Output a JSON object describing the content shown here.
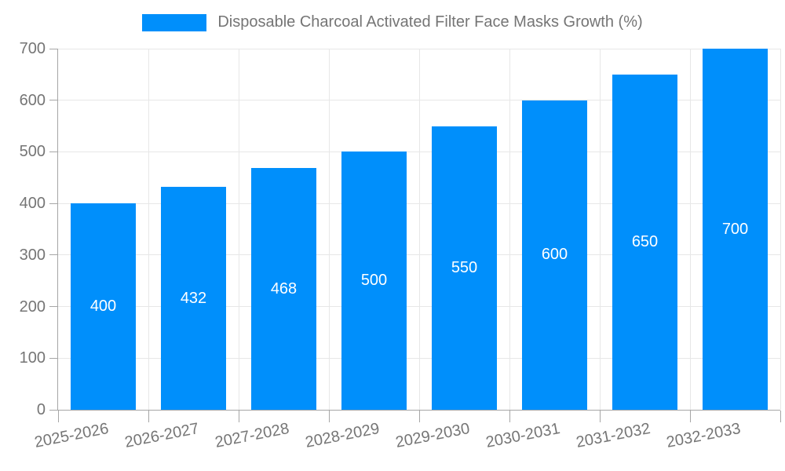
{
  "chart_data": {
    "type": "bar",
    "title": "Disposable Charcoal Activated Filter Face Masks Growth (%)",
    "categories": [
      "2025-2026",
      "2026-2027",
      "2027-2028",
      "2028-2029",
      "2029-2030",
      "2030-2031",
      "2031-2032",
      "2032-2033"
    ],
    "values": [
      400,
      432,
      468,
      500,
      550,
      600,
      650,
      700
    ],
    "yticks": [
      0,
      100,
      200,
      300,
      400,
      500,
      600,
      700
    ],
    "ylim": [
      0,
      700
    ],
    "xlabel": "",
    "ylabel": "",
    "grid": true,
    "legend_position": "top",
    "bar_color": "#008FFB",
    "label_color": "#ffffff",
    "grid_color": "#e7e7e7",
    "axis_color": "#a6a6a6",
    "text_color": "#757575"
  }
}
